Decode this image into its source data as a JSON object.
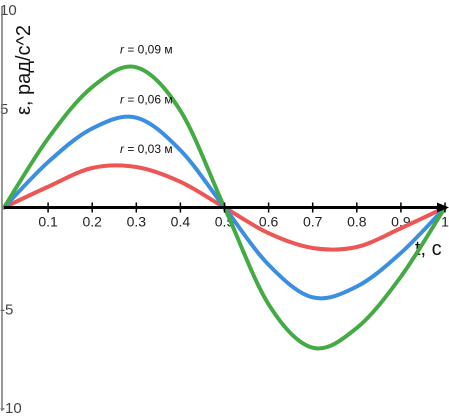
{
  "chart_data": {
    "type": "line",
    "title": "",
    "xlabel": "t, c",
    "ylabel": "ε, рад/с^2",
    "xlim": [
      0,
      1
    ],
    "ylim": [
      -10,
      10
    ],
    "x_ticks": [
      "0.1",
      "0.2",
      "0.3",
      "0.4",
      "0.5",
      "0.6",
      "0.7",
      "0.8",
      "0.9",
      "1"
    ],
    "y_ticks": [
      "10",
      "5",
      "-5",
      "-10"
    ],
    "grid": false,
    "legend": "none",
    "x": [
      0,
      0.1,
      0.2,
      0.3,
      0.4,
      0.5,
      0.6,
      0.7,
      0.8,
      0.9,
      1.0
    ],
    "series": [
      {
        "name": "r = 0,03 м",
        "color": "#ee5555",
        "values": [
          0,
          1.05,
          2.0,
          2.05,
          1.3,
          0,
          -1.3,
          -2.05,
          -2.0,
          -1.05,
          0
        ]
      },
      {
        "name": "r = 0,06 м",
        "color": "#3b8fe0",
        "values": [
          0,
          2.3,
          4.0,
          4.55,
          2.9,
          0,
          -2.9,
          -4.55,
          -4.0,
          -2.3,
          0
        ]
      },
      {
        "name": "r = 0,09 м",
        "color": "#44aa44",
        "values": [
          0,
          3.5,
          6.1,
          7.1,
          4.9,
          0,
          -4.9,
          -7.1,
          -6.1,
          -3.5,
          0
        ]
      }
    ]
  }
}
